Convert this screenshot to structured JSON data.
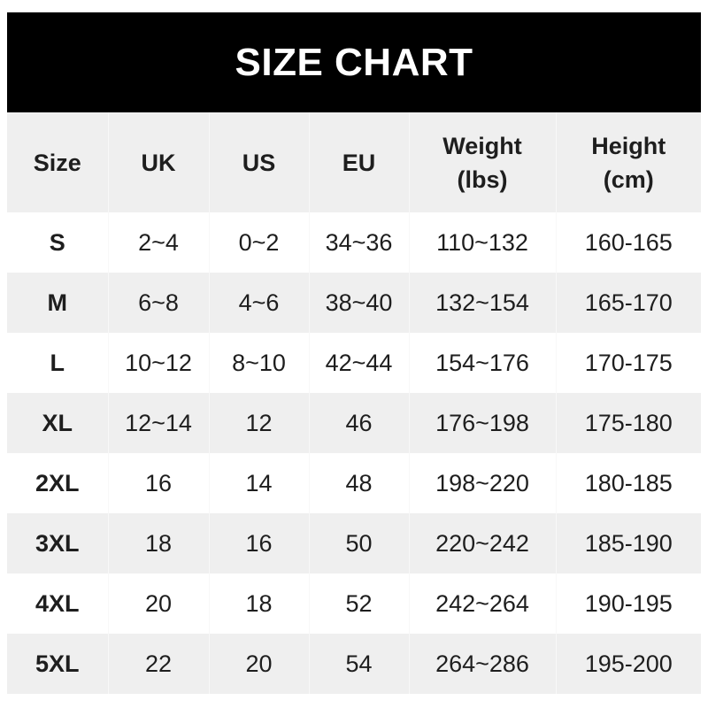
{
  "title": "SIZE CHART",
  "headers": [
    {
      "line1": "Size",
      "line2": ""
    },
    {
      "line1": "UK",
      "line2": ""
    },
    {
      "line1": "US",
      "line2": ""
    },
    {
      "line1": "EU",
      "line2": ""
    },
    {
      "line1": "Weight",
      "line2": "(lbs)"
    },
    {
      "line1": "Height",
      "line2": "(cm)"
    }
  ],
  "rows": [
    [
      "S",
      "2~4",
      "0~2",
      "34~36",
      "110~132",
      "160-165"
    ],
    [
      "M",
      "6~8",
      "4~6",
      "38~40",
      "132~154",
      "165-170"
    ],
    [
      "L",
      "10~12",
      "8~10",
      "42~44",
      "154~176",
      "170-175"
    ],
    [
      "XL",
      "12~14",
      "12",
      "46",
      "176~198",
      "175-180"
    ],
    [
      "2XL",
      "16",
      "14",
      "48",
      "198~220",
      "180-185"
    ],
    [
      "3XL",
      "18",
      "16",
      "50",
      "220~242",
      "185-190"
    ],
    [
      "4XL",
      "20",
      "18",
      "52",
      "242~264",
      "190-195"
    ],
    [
      "5XL",
      "22",
      "20",
      "54",
      "264~286",
      "195-200"
    ]
  ],
  "colors": {
    "banner": "#000000",
    "stripe": "#efefef",
    "text": "#1e1e1e"
  }
}
